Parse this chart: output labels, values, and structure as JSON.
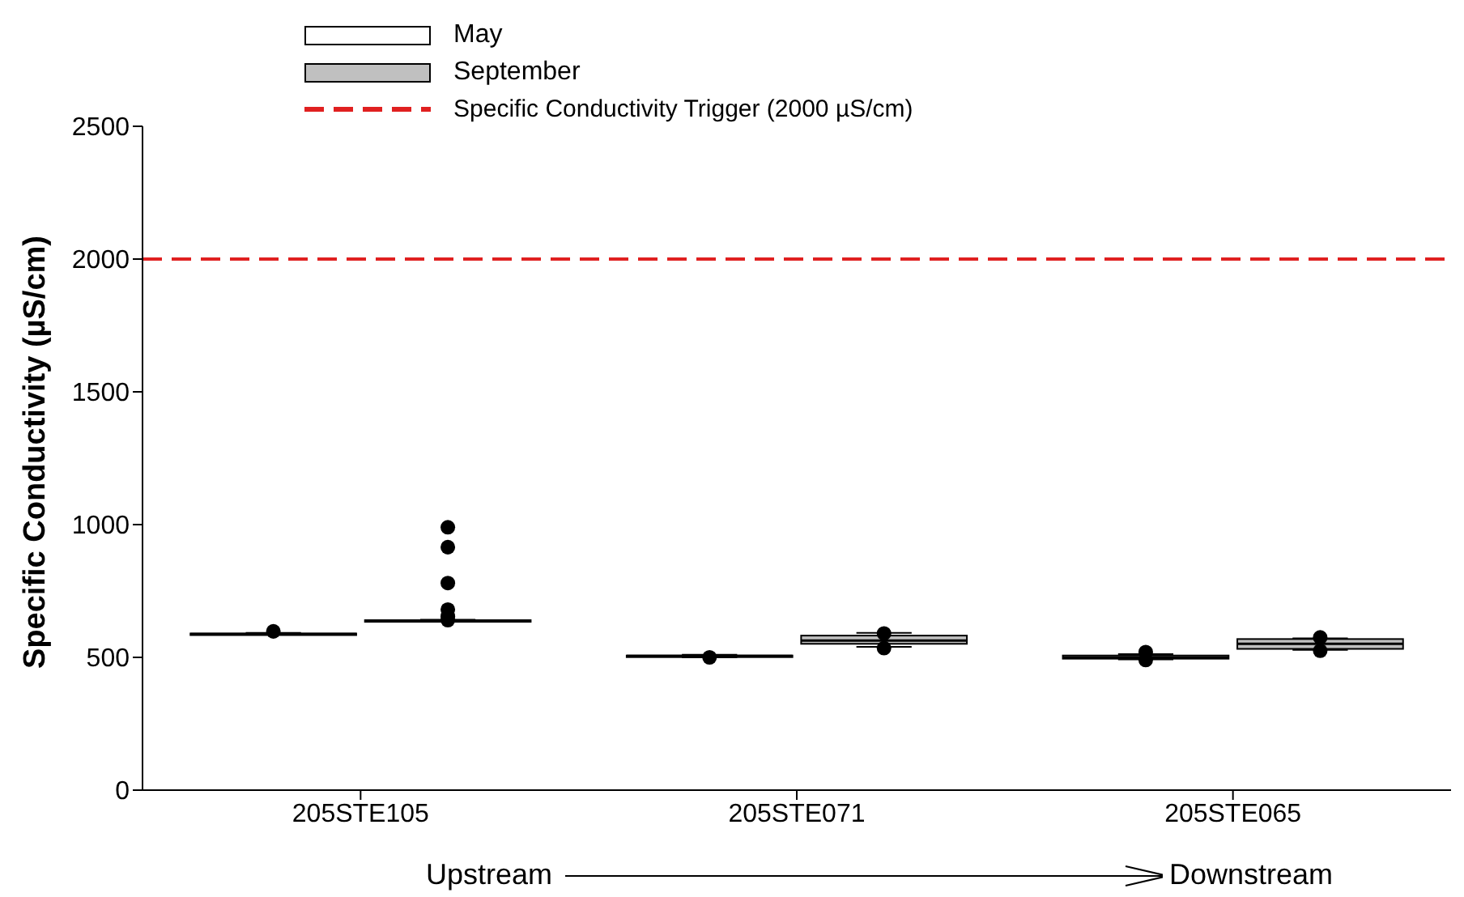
{
  "chart_data": {
    "type": "box",
    "ylabel": "Specific Conductivity (µS/cm)",
    "categories": [
      "205STE105",
      "205STE071",
      "205STE065"
    ],
    "series": [
      {
        "name": "May",
        "color": "#ffffff",
        "boxes": [
          {
            "low": 585,
            "q1": 586,
            "median": 588,
            "q3": 590,
            "high": 592,
            "outliers": [
              598
            ]
          },
          {
            "low": 500,
            "q1": 503,
            "median": 505,
            "q3": 507,
            "high": 510,
            "outliers": [
              500
            ]
          },
          {
            "low": 492,
            "q1": 495,
            "median": 500,
            "q3": 507,
            "high": 512,
            "outliers": [
              520,
              490
            ]
          }
        ]
      },
      {
        "name": "September",
        "color": "#c0c0c0",
        "boxes": [
          {
            "low": 635,
            "q1": 636,
            "median": 637,
            "q3": 640,
            "high": 642,
            "outliers": [
              990,
              915,
              780,
              680,
              655,
              640
            ]
          },
          {
            "low": 540,
            "q1": 551,
            "median": 563,
            "q3": 582,
            "high": 592,
            "outliers": [
              590,
              535
            ]
          },
          {
            "low": 528,
            "q1": 532,
            "median": 551,
            "q3": 569,
            "high": 572,
            "outliers": [
              575,
              525
            ]
          }
        ]
      }
    ],
    "ylim": [
      0,
      2500
    ],
    "yticks": [
      0,
      500,
      1000,
      1500,
      2000,
      2500
    ],
    "ref_lines": [
      {
        "axis": "y",
        "value": 2000,
        "label": "Specific Conductivity Trigger (2000 µS/cm)",
        "color": "#e02020",
        "line_style": "dashed"
      }
    ],
    "legend": "top left",
    "annotations": [
      "Upstream",
      "Downstream"
    ]
  }
}
